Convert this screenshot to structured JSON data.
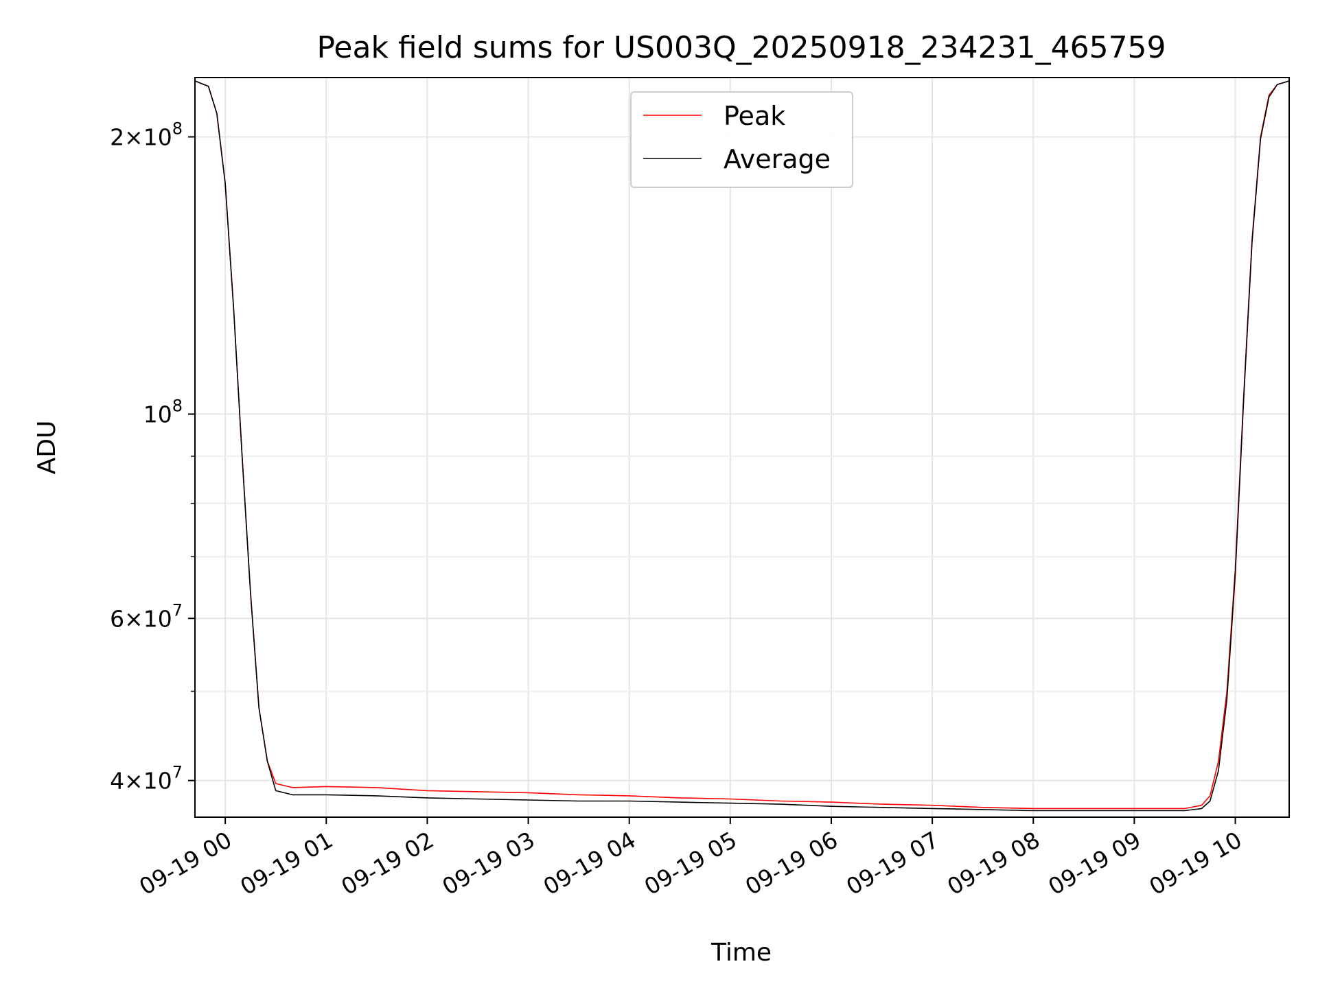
{
  "chart_data": {
    "type": "line",
    "title": "Peak field sums for US003Q_20250918_234231_465759",
    "xlabel": "Time",
    "ylabel": "ADU",
    "y_scale": "log",
    "ylim": [
      36500000,
      232000000
    ],
    "xlim": [
      "2025-09-18 23:42",
      "2025-09-19 10:32"
    ],
    "x_ticks": [
      {
        "label": "09-19 00",
        "value": "2025-09-19 00:00"
      },
      {
        "label": "09-19 01",
        "value": "2025-09-19 01:00"
      },
      {
        "label": "09-19 02",
        "value": "2025-09-19 02:00"
      },
      {
        "label": "09-19 03",
        "value": "2025-09-19 03:00"
      },
      {
        "label": "09-19 04",
        "value": "2025-09-19 04:00"
      },
      {
        "label": "09-19 05",
        "value": "2025-09-19 05:00"
      },
      {
        "label": "09-19 06",
        "value": "2025-09-19 06:00"
      },
      {
        "label": "09-19 07",
        "value": "2025-09-19 07:00"
      },
      {
        "label": "09-19 08",
        "value": "2025-09-19 08:00"
      },
      {
        "label": "09-19 09",
        "value": "2025-09-19 09:00"
      },
      {
        "label": "09-19 10",
        "value": "2025-09-19 10:00"
      }
    ],
    "y_ticks": [
      {
        "base": "4",
        "exp": "7",
        "value": 40000000
      },
      {
        "base": "6",
        "exp": "7",
        "value": 60000000
      },
      {
        "base": "",
        "exp": "8",
        "value": 100000000
      },
      {
        "base": "2",
        "exp": "8",
        "value": 200000000
      }
    ],
    "y_minor_ticks": [
      50000000,
      70000000,
      80000000,
      90000000
    ],
    "grid": true,
    "legend_position": "top-center",
    "series": [
      {
        "name": "Peak",
        "color": "#ff0000",
        "x": [
          "2025-09-18 23:42",
          "2025-09-18 23:50",
          "2025-09-18 23:55",
          "2025-09-19 00:00",
          "2025-09-19 00:05",
          "2025-09-19 00:10",
          "2025-09-19 00:15",
          "2025-09-19 00:20",
          "2025-09-19 00:25",
          "2025-09-19 00:30",
          "2025-09-19 00:40",
          "2025-09-19 01:00",
          "2025-09-19 01:30",
          "2025-09-19 02:00",
          "2025-09-19 02:30",
          "2025-09-19 03:00",
          "2025-09-19 03:30",
          "2025-09-19 04:00",
          "2025-09-19 04:30",
          "2025-09-19 05:00",
          "2025-09-19 05:30",
          "2025-09-19 06:00",
          "2025-09-19 06:30",
          "2025-09-19 07:00",
          "2025-09-19 07:30",
          "2025-09-19 08:00",
          "2025-09-19 08:30",
          "2025-09-19 09:00",
          "2025-09-19 09:30",
          "2025-09-19 09:40",
          "2025-09-19 09:45",
          "2025-09-19 09:50",
          "2025-09-19 09:55",
          "2025-09-19 10:00",
          "2025-09-19 10:05",
          "2025-09-19 10:10",
          "2025-09-19 10:15",
          "2025-09-19 10:20",
          "2025-09-19 10:25",
          "2025-09-19 10:32"
        ],
        "y": [
          230000000,
          227000000,
          212000000,
          178000000,
          130000000,
          90000000,
          64000000,
          48000000,
          42000000,
          39700000,
          39300000,
          39400000,
          39300000,
          39000000,
          38900000,
          38800000,
          38600000,
          38500000,
          38300000,
          38200000,
          38000000,
          37900000,
          37700000,
          37600000,
          37400000,
          37300000,
          37300000,
          37300000,
          37300000,
          37600000,
          38500000,
          42000000,
          50000000,
          68000000,
          105000000,
          155000000,
          200000000,
          222000000,
          228000000,
          230000000
        ]
      },
      {
        "name": "Average",
        "color": "#000000",
        "x": [
          "2025-09-18 23:42",
          "2025-09-18 23:50",
          "2025-09-18 23:55",
          "2025-09-19 00:00",
          "2025-09-19 00:05",
          "2025-09-19 00:10",
          "2025-09-19 00:15",
          "2025-09-19 00:20",
          "2025-09-19 00:25",
          "2025-09-19 00:30",
          "2025-09-19 00:40",
          "2025-09-19 01:00",
          "2025-09-19 01:30",
          "2025-09-19 02:00",
          "2025-09-19 02:30",
          "2025-09-19 03:00",
          "2025-09-19 03:30",
          "2025-09-19 04:00",
          "2025-09-19 04:30",
          "2025-09-19 05:00",
          "2025-09-19 05:30",
          "2025-09-19 06:00",
          "2025-09-19 06:30",
          "2025-09-19 07:00",
          "2025-09-19 07:30",
          "2025-09-19 08:00",
          "2025-09-19 08:30",
          "2025-09-19 09:00",
          "2025-09-19 09:30",
          "2025-09-19 09:40",
          "2025-09-19 09:45",
          "2025-09-19 09:50",
          "2025-09-19 09:55",
          "2025-09-19 10:00",
          "2025-09-19 10:05",
          "2025-09-19 10:10",
          "2025-09-19 10:15",
          "2025-09-19 10:20",
          "2025-09-19 10:25",
          "2025-09-19 10:32"
        ],
        "y": [
          230000000,
          227000000,
          212000000,
          178000000,
          130000000,
          90000000,
          64000000,
          48000000,
          42000000,
          39000000,
          38600000,
          38600000,
          38500000,
          38300000,
          38200000,
          38100000,
          38000000,
          38000000,
          37900000,
          37800000,
          37700000,
          37500000,
          37400000,
          37300000,
          37200000,
          37100000,
          37100000,
          37100000,
          37100000,
          37300000,
          38000000,
          41000000,
          49000000,
          67000000,
          104000000,
          154000000,
          199000000,
          221000000,
          228000000,
          230000000
        ]
      }
    ]
  }
}
